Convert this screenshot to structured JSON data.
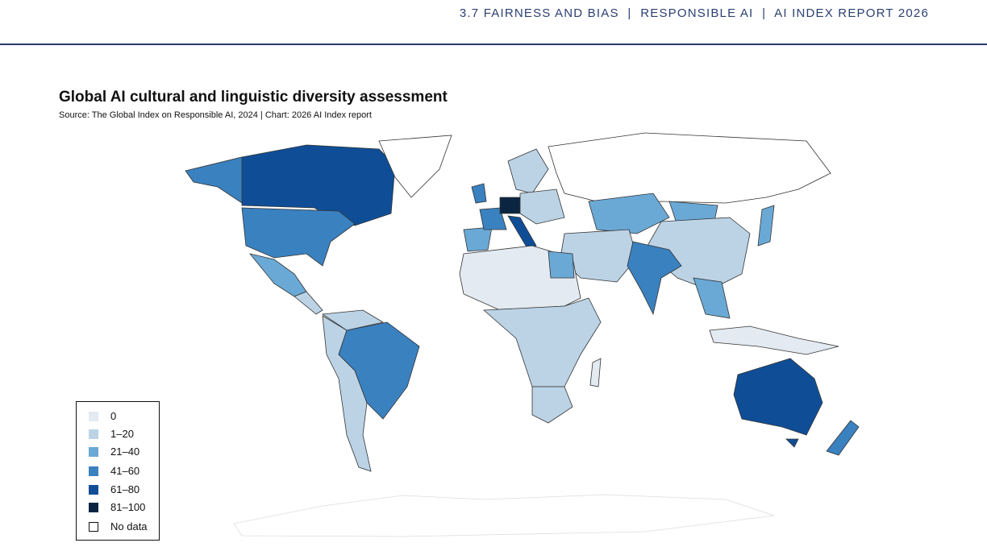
{
  "header": {
    "text": "3.7 FAIRNESS AND BIAS  |  RESPONSIBLE AI  |  AI INDEX REPORT 2026"
  },
  "chart_data": {
    "type": "choropleth",
    "title": "Global AI cultural and linguistic diversity assessment",
    "subtitle": "Source: The Global Index on Responsible AI, 2024  | Chart: 2026 AI Index report",
    "legend": [
      {
        "label": "0",
        "color": "#e3eaf1"
      },
      {
        "label": "1–20",
        "color": "#bcd3e6"
      },
      {
        "label": "21–40",
        "color": "#6aa9d5"
      },
      {
        "label": "41–60",
        "color": "#3a81c0"
      },
      {
        "label": "61–80",
        "color": "#0f4e97"
      },
      {
        "label": "81–100",
        "color": "#0a2541"
      },
      {
        "label": "No data",
        "color": "#ffffff"
      }
    ]
  }
}
